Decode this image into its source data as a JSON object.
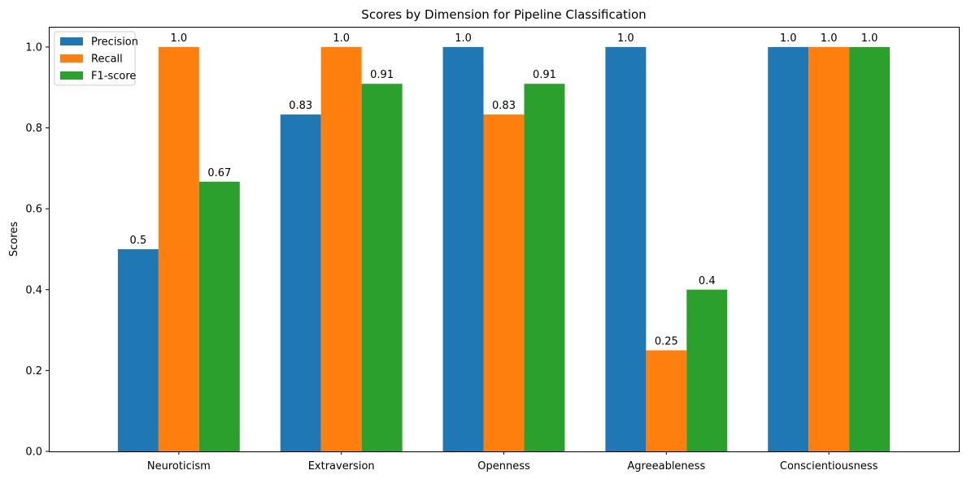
{
  "chart_data": {
    "type": "bar",
    "title": "Scores by Dimension for Pipeline Classification",
    "xlabel": "",
    "ylabel": "Scores",
    "categories": [
      "Neuroticism",
      "Extraversion",
      "Openness",
      "Agreeableness",
      "Conscientiousness"
    ],
    "series": [
      {
        "name": "Precision",
        "color": "#1f77b4",
        "values": [
          0.5,
          0.833,
          1.0,
          1.0,
          1.0
        ],
        "labels": [
          "0.5",
          "0.83",
          "1.0",
          "1.0",
          "1.0"
        ]
      },
      {
        "name": "Recall",
        "color": "#ff7f0e",
        "values": [
          1.0,
          1.0,
          0.833,
          0.25,
          1.0
        ],
        "labels": [
          "1.0",
          "1.0",
          "0.83",
          "0.25",
          "1.0"
        ]
      },
      {
        "name": "F1-score",
        "color": "#2ca02c",
        "values": [
          0.667,
          0.909,
          0.909,
          0.4,
          1.0
        ],
        "labels": [
          "0.67",
          "0.91",
          "0.91",
          "0.4",
          "1.0"
        ]
      }
    ],
    "ylim": [
      0,
      1.05
    ],
    "yticks": [
      "0.0",
      "0.2",
      "0.4",
      "0.6",
      "0.8",
      "1.0"
    ],
    "grid": false,
    "legend": "top-left"
  }
}
